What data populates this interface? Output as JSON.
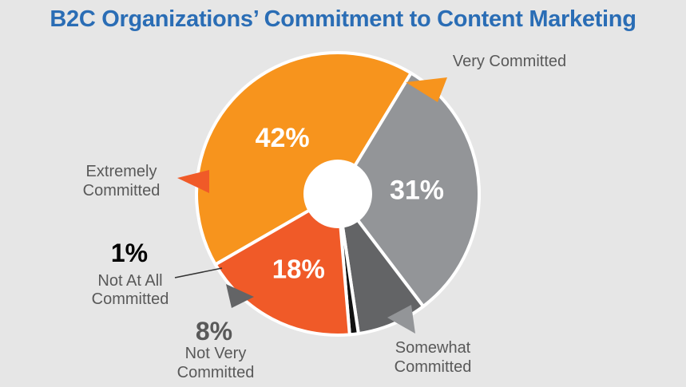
{
  "title": "B2C Organizations’ Commitment to Content Marketing",
  "colors": {
    "title": "#2a6db5",
    "background": "#e6e6e6",
    "very_committed": "#f7941d",
    "somewhat_committed": "#939598",
    "not_very_committed": "#636466",
    "not_at_all_committed": "#111111",
    "extremely_committed": "#f05a28",
    "label_text": "#595959"
  },
  "chart_data": {
    "type": "pie",
    "title": "B2C Organizations’ Commitment to Content Marketing",
    "slices": [
      {
        "label": "Very Committed",
        "label_lines": [
          "Very Committed"
        ],
        "value": 42,
        "value_label": "42%",
        "color": "#f7941d"
      },
      {
        "label": "Somewhat Committed",
        "label_lines": [
          "Somewhat",
          "Committed"
        ],
        "value": 31,
        "value_label": "31%",
        "color": "#939598"
      },
      {
        "label": "Not Very Committed",
        "label_lines": [
          "Not Very",
          "Committed"
        ],
        "value": 8,
        "value_label": "8%",
        "color": "#636466"
      },
      {
        "label": "Not At All Committed",
        "label_lines": [
          "Not At All",
          "Committed"
        ],
        "value": 1,
        "value_label": "1%",
        "color": "#111111"
      },
      {
        "label": "Extremely Committed",
        "label_lines": [
          "Extremely",
          "Committed"
        ],
        "value": 18,
        "value_label": "18%",
        "color": "#f05a28"
      }
    ],
    "legend": "none",
    "donut_hole": true
  }
}
